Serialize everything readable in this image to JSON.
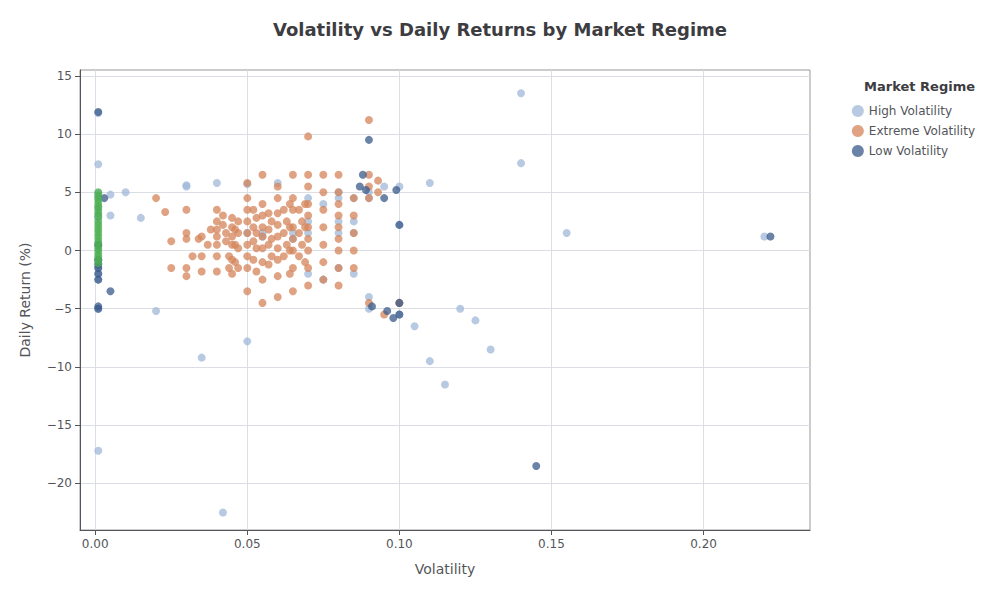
{
  "chart_data": {
    "type": "scatter",
    "title": "Volatility vs Daily Returns by Market Regime",
    "xlabel": "Volatility",
    "ylabel": "Daily Return (%)",
    "legend_title": "Market Regime",
    "legend": "upper right",
    "grid": true,
    "xlim": [
      -0.005,
      0.235
    ],
    "ylim": [
      -24,
      15.5
    ],
    "xticks": [
      {
        "value": 0,
        "label": "0.00"
      },
      0.05,
      {
        "value": 0.1,
        "label": "0.10"
      },
      0.15,
      {
        "value": 0.2,
        "label": "0.20"
      }
    ],
    "yticks": [
      {
        "value": -20,
        "label": "−20"
      },
      {
        "value": -15,
        "label": "−15"
      },
      {
        "value": -10,
        "label": "−10"
      },
      {
        "value": -5,
        "label": "−5"
      },
      0,
      5,
      10,
      15
    ],
    "series": [
      {
        "name": "High Volatility",
        "color": "#a0b8d8",
        "x": [
          0.001,
          0.001,
          0.001,
          0.001,
          0.001,
          0.001,
          0.001,
          0.001,
          0.001,
          0.001,
          0.001,
          0.001,
          0.001,
          0.001,
          0.001,
          0.005,
          0.005,
          0.01,
          0.015,
          0.02,
          0.03,
          0.03,
          0.035,
          0.04,
          0.042,
          0.05,
          0.05,
          0.05,
          0.055,
          0.055,
          0.06,
          0.065,
          0.065,
          0.07,
          0.07,
          0.07,
          0.07,
          0.075,
          0.075,
          0.08,
          0.08,
          0.08,
          0.08,
          0.08,
          0.085,
          0.085,
          0.085,
          0.085,
          0.09,
          0.09,
          0.09,
          0.09,
          0.095,
          0.1,
          0.1,
          0.1,
          0.1,
          0.105,
          0.11,
          0.11,
          0.115,
          0.12,
          0.125,
          0.13,
          0.14,
          0.14,
          0.155,
          0.22
        ],
        "values": [
          11.8,
          7.4,
          4.9,
          4.6,
          3.7,
          3.0,
          2.8,
          0.4,
          0.1,
          -0.8,
          -1.5,
          -2.0,
          -2.5,
          -5.0,
          -17.2,
          4.8,
          3.0,
          5.0,
          2.8,
          -5.2,
          5.6,
          5.5,
          -9.2,
          5.8,
          -22.5,
          5.7,
          1.5,
          -7.8,
          1.5,
          1.2,
          5.8,
          1.5,
          1.0,
          4.5,
          2.5,
          1.5,
          -2.0,
          4.0,
          -2.5,
          5.0,
          4.5,
          2.5,
          1.5,
          -1.5,
          4.5,
          2.5,
          1.5,
          -2.0,
          5.0,
          4.5,
          -4.0,
          -5.0,
          5.5,
          5.5,
          2.2,
          -4.5,
          -5.5,
          -6.5,
          5.8,
          -9.5,
          -11.5,
          -5.0,
          -6.0,
          -8.5,
          13.5,
          7.5,
          1.5,
          1.2
        ]
      },
      {
        "name": "Extreme Volatility",
        "color": "#d4845a",
        "x": [
          0.02,
          0.023,
          0.025,
          0.025,
          0.03,
          0.03,
          0.03,
          0.03,
          0.03,
          0.032,
          0.034,
          0.035,
          0.035,
          0.035,
          0.037,
          0.038,
          0.04,
          0.04,
          0.04,
          0.04,
          0.04,
          0.04,
          0.04,
          0.042,
          0.042,
          0.043,
          0.043,
          0.044,
          0.044,
          0.045,
          0.045,
          0.045,
          0.045,
          0.045,
          0.045,
          0.046,
          0.046,
          0.046,
          0.047,
          0.047,
          0.047,
          0.047,
          0.05,
          0.05,
          0.05,
          0.05,
          0.05,
          0.05,
          0.05,
          0.05,
          0.05,
          0.052,
          0.052,
          0.052,
          0.052,
          0.053,
          0.053,
          0.053,
          0.053,
          0.055,
          0.055,
          0.055,
          0.055,
          0.055,
          0.055,
          0.055,
          0.055,
          0.055,
          0.057,
          0.057,
          0.057,
          0.057,
          0.058,
          0.058,
          0.058,
          0.06,
          0.06,
          0.06,
          0.06,
          0.06,
          0.06,
          0.06,
          0.06,
          0.06,
          0.062,
          0.062,
          0.062,
          0.063,
          0.063,
          0.064,
          0.064,
          0.064,
          0.064,
          0.065,
          0.065,
          0.065,
          0.065,
          0.065,
          0.065,
          0.065,
          0.065,
          0.067,
          0.067,
          0.067,
          0.068,
          0.068,
          0.069,
          0.069,
          0.069,
          0.07,
          0.07,
          0.07,
          0.07,
          0.07,
          0.07,
          0.07,
          0.07,
          0.07,
          0.07,
          0.075,
          0.075,
          0.075,
          0.075,
          0.075,
          0.075,
          0.075,
          0.08,
          0.08,
          0.08,
          0.08,
          0.08,
          0.08,
          0.08,
          0.08,
          0.08,
          0.085,
          0.085,
          0.085,
          0.085,
          0.085,
          0.09,
          0.09,
          0.09,
          0.09,
          0.09,
          0.093,
          0.093,
          0.095,
          0.1
        ],
        "values": [
          4.5,
          3.3,
          0.8,
          -1.5,
          3.5,
          1.5,
          1.0,
          -1.5,
          -2.2,
          -0.5,
          1.0,
          1.2,
          -0.5,
          -1.8,
          0.5,
          1.8,
          3.5,
          2.5,
          1.8,
          1.2,
          0.5,
          -0.5,
          -1.8,
          3.0,
          2.2,
          1.5,
          0.8,
          -0.5,
          -1.5,
          2.8,
          2.0,
          1.2,
          0.5,
          -0.8,
          -2.0,
          1.8,
          0.5,
          -1.0,
          2.5,
          1.5,
          0.2,
          -1.5,
          5.8,
          4.5,
          3.5,
          2.5,
          1.5,
          0.5,
          -0.5,
          -1.5,
          -3.5,
          3.5,
          2.0,
          0.8,
          -0.8,
          2.8,
          1.5,
          0.2,
          -1.8,
          6.5,
          4.0,
          3.0,
          2.0,
          1.2,
          0.2,
          -1.0,
          -2.5,
          -4.5,
          3.2,
          1.8,
          0.5,
          -1.2,
          2.5,
          1.0,
          -0.5,
          5.5,
          4.5,
          3.2,
          2.2,
          1.2,
          0.2,
          -0.8,
          -2.2,
          -4.0,
          3.5,
          1.5,
          -0.5,
          2.5,
          0.5,
          4.0,
          2.0,
          0.0,
          -2.0,
          6.5,
          4.5,
          3.5,
          2.0,
          1.0,
          0.0,
          -1.5,
          -3.5,
          3.5,
          1.5,
          -0.5,
          2.5,
          0.5,
          4.0,
          2.0,
          -1.0,
          9.8,
          6.5,
          5.5,
          4.0,
          3.0,
          2.0,
          1.0,
          0.0,
          -1.5,
          -3.0,
          6.5,
          5.0,
          3.5,
          2.0,
          0.5,
          -1.0,
          -2.5,
          6.5,
          5.0,
          4.0,
          3.0,
          2.0,
          1.0,
          0.0,
          -1.5,
          -3.0,
          4.5,
          3.0,
          1.5,
          0.0,
          -1.5,
          11.2,
          6.5,
          5.5,
          4.5,
          -4.5,
          6.0,
          5.0,
          -5.5,
          -4.5
        ]
      },
      {
        "name": "Low Volatility",
        "color": "#3a5a8a",
        "x": [
          0.001,
          0.001,
          0.001,
          0.001,
          0.001,
          0.001,
          0.001,
          0.001,
          0.001,
          0.003,
          0.005,
          0.09,
          0.087,
          0.088,
          0.089,
          0.091,
          0.095,
          0.096,
          0.098,
          0.099,
          0.1,
          0.1,
          0.1,
          0.145,
          0.222
        ],
        "values": [
          11.9,
          -1.5,
          -2.0,
          -2.5,
          -4.8,
          -5.0,
          0.5,
          -0.8,
          -1.2,
          4.5,
          -3.5,
          9.5,
          5.5,
          6.5,
          5.2,
          -4.8,
          4.5,
          -5.2,
          -5.8,
          5.2,
          2.2,
          -4.5,
          -5.5,
          -18.5,
          1.2
        ]
      },
      {
        "color": "#4caf50",
        "x": [
          0.001,
          0.001,
          0.001,
          0.001,
          0.001,
          0.001,
          0.001,
          0.001,
          0.001,
          0.001,
          0.001,
          0.001,
          0.001,
          0.001,
          0.001,
          0.001,
          0.001,
          0.001,
          0.001,
          0.001,
          0.001
        ],
        "values": [
          5.0,
          4.7,
          4.4,
          4.1,
          3.8,
          3.5,
          3.2,
          2.9,
          2.5,
          2.2,
          1.9,
          1.6,
          1.3,
          1.0,
          0.7,
          0.4,
          0.1,
          -0.2,
          -0.5,
          -0.8,
          -1.1
        ]
      }
    ]
  }
}
